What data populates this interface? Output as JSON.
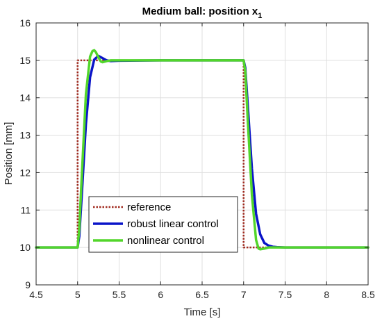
{
  "chart_data": {
    "type": "line",
    "title": "Medium ball: position x",
    "title_subscript": "1",
    "xlabel": "Time [s]",
    "ylabel": "Position [mm]",
    "xlim": [
      4.5,
      8.5
    ],
    "ylim": [
      9,
      16
    ],
    "xticks": [
      4.5,
      5,
      5.5,
      6,
      6.5,
      7,
      7.5,
      8,
      8.5
    ],
    "yticks": [
      9,
      10,
      11,
      12,
      13,
      14,
      15,
      16
    ],
    "grid": true,
    "legend_position": "bottom-left",
    "series": [
      {
        "name": "reference",
        "color": "#a0291e",
        "style": "dotted",
        "x": [
          4.5,
          5.0,
          5.0,
          7.0,
          7.0,
          8.5
        ],
        "y": [
          10,
          10,
          15,
          15,
          10,
          10
        ]
      },
      {
        "name": "robust linear control",
        "color": "#0a14c8",
        "style": "solid",
        "x": [
          4.5,
          5.0,
          5.02,
          5.05,
          5.1,
          5.15,
          5.2,
          5.25,
          5.3,
          5.35,
          5.4,
          5.5,
          6.0,
          6.5,
          7.0,
          7.02,
          7.05,
          7.1,
          7.15,
          7.2,
          7.25,
          7.3,
          7.35,
          7.4,
          7.5,
          8.0,
          8.5
        ],
        "y": [
          10,
          10,
          10.3,
          11.4,
          13.3,
          14.55,
          15.02,
          15.12,
          15.06,
          15.0,
          14.98,
          14.99,
          15,
          15,
          15,
          14.8,
          13.8,
          12.1,
          10.9,
          10.35,
          10.12,
          10.05,
          10.02,
          10.01,
          10.0,
          10.0,
          10.0
        ]
      },
      {
        "name": "nonlinear control",
        "color": "#52d62a",
        "style": "solid",
        "x": [
          4.5,
          5.0,
          5.02,
          5.05,
          5.1,
          5.15,
          5.18,
          5.2,
          5.22,
          5.25,
          5.28,
          5.3,
          5.35,
          5.4,
          5.5,
          6.0,
          6.5,
          7.0,
          7.02,
          7.05,
          7.1,
          7.15,
          7.18,
          7.2,
          7.25,
          7.3,
          7.4,
          7.5,
          8.0,
          8.5
        ],
        "y": [
          10,
          10,
          10.5,
          11.9,
          14.1,
          15.1,
          15.25,
          15.27,
          15.22,
          15.08,
          14.97,
          14.95,
          14.98,
          15.0,
          15.0,
          15,
          15,
          15,
          14.7,
          13.4,
          11.4,
          10.2,
          9.97,
          9.95,
          9.97,
          10.0,
          10.0,
          10.0,
          10.0,
          10.0
        ]
      }
    ]
  }
}
